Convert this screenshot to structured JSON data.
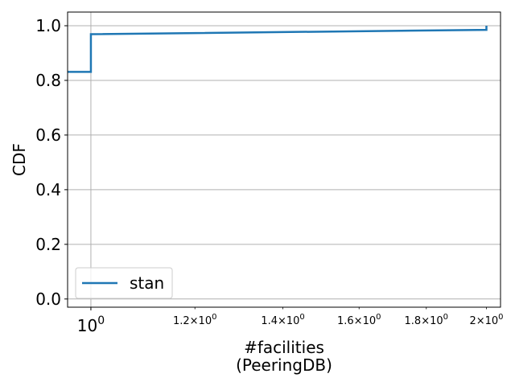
{
  "chart_data": {
    "type": "line",
    "xlabel_line1": "#facilities",
    "xlabel_line2": "(PeeringDB)",
    "ylabel": "CDF",
    "x_scale": "log",
    "xlim": [
      0.96,
      2.05
    ],
    "ylim": [
      -0.03,
      1.05
    ],
    "grid": true,
    "legend_position": "lower-left",
    "y_ticks": [
      {
        "value": 0.0,
        "label": "0.0"
      },
      {
        "value": 0.2,
        "label": "0.2"
      },
      {
        "value": 0.4,
        "label": "0.4"
      },
      {
        "value": 0.6,
        "label": "0.6"
      },
      {
        "value": 0.8,
        "label": "0.8"
      },
      {
        "value": 1.0,
        "label": "1.0"
      }
    ],
    "x_major_ticks": [
      {
        "value": 1.0,
        "base": "10",
        "exp": "0"
      }
    ],
    "x_minor_ticks": [
      {
        "value": 1.2,
        "mant": "1.2",
        "base": "10",
        "exp": "0"
      },
      {
        "value": 1.4,
        "mant": "1.4",
        "base": "10",
        "exp": "0"
      },
      {
        "value": 1.6,
        "mant": "1.6",
        "base": "10",
        "exp": "0"
      },
      {
        "value": 1.8,
        "mant": "1.8",
        "base": "10",
        "exp": "0"
      },
      {
        "value": 2.0,
        "mant": "2",
        "base": "10",
        "exp": "0"
      }
    ],
    "series": [
      {
        "name": "stan",
        "color": "#1f77b4",
        "points": [
          [
            0.96,
            0.831
          ],
          [
            1.0,
            0.831
          ],
          [
            1.0,
            0.969
          ],
          [
            2.0,
            0.985
          ],
          [
            2.0,
            1.0
          ]
        ]
      }
    ]
  }
}
